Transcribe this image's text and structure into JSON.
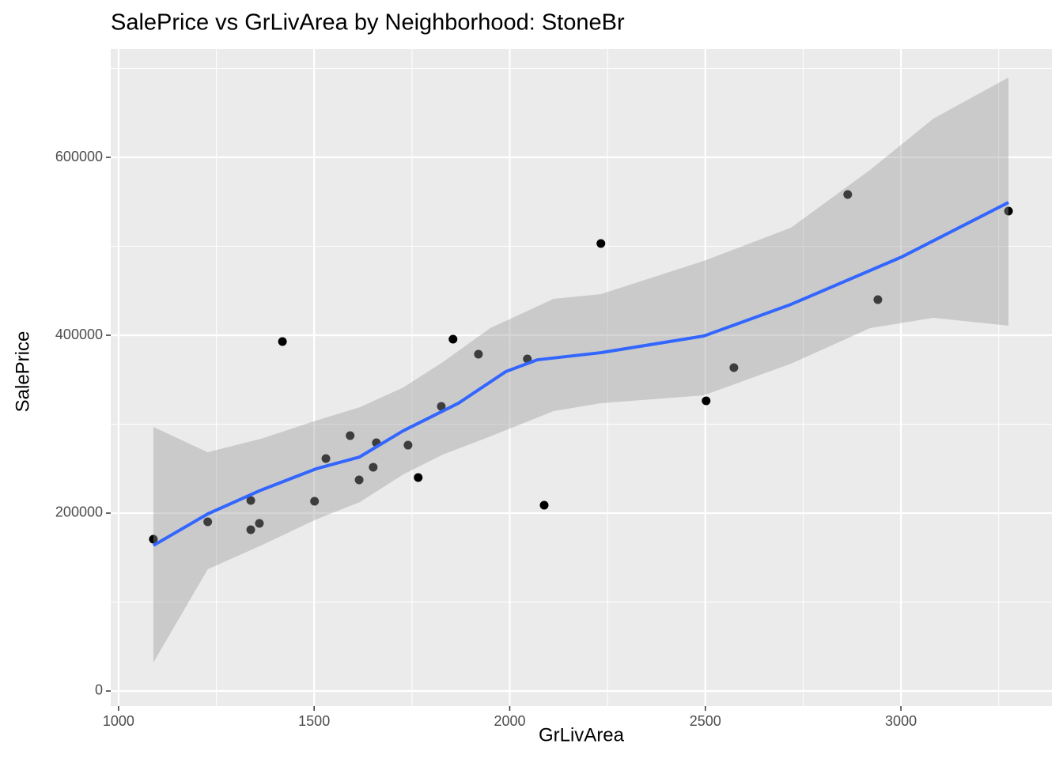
{
  "chart_data": {
    "type": "scatter",
    "title": "SalePrice vs GrLivArea by Neighborhood: StoneBr",
    "x_label": "GrLivArea",
    "y_label": "SalePrice",
    "xlim": [
      980,
      3386
    ],
    "ylim": [
      -16900,
      721800
    ],
    "xticks": [
      1000,
      1500,
      2000,
      2500,
      3000
    ],
    "yticks": [
      0,
      200000,
      400000,
      600000
    ],
    "xminor": [
      1250,
      1750,
      2250,
      2750,
      3250
    ],
    "yminor": [
      100000,
      300000,
      500000,
      700000
    ],
    "grid": true,
    "points": {
      "color": "#000000",
      "x": [
        1089,
        1228,
        1338,
        1338,
        1360,
        1419,
        1501,
        1530,
        1592,
        1615,
        1651,
        1659,
        1740,
        1766,
        1825,
        1855,
        1920,
        2045,
        2088,
        2233,
        2502,
        2573,
        2864,
        2941,
        3275
      ],
      "values": [
        170700,
        190200,
        214200,
        181300,
        188400,
        392900,
        213300,
        261300,
        287100,
        237300,
        251600,
        279100,
        276400,
        240000,
        320000,
        395600,
        378700,
        373300,
        208900,
        503100,
        326200,
        363600,
        558200,
        440000,
        539600
      ]
    },
    "smooth": {
      "color": "#3366ff",
      "x": [
        1089,
        1228,
        1364,
        1505,
        1616,
        1727,
        1869,
        1990,
        2071,
        2233,
        2496,
        2719,
        3002,
        3275
      ],
      "values": [
        163600,
        199100,
        225800,
        249800,
        263100,
        292400,
        323600,
        359100,
        372400,
        380400,
        399100,
        434700,
        488000,
        549300
      ]
    },
    "band": {
      "color": "#999999",
      "x": [
        1089,
        1228,
        1364,
        1505,
        1617,
        1728,
        1829,
        1950,
        2112,
        2233,
        2496,
        2719,
        2921,
        3083,
        3275
      ],
      "upper": [
        296900,
        268400,
        283600,
        304000,
        319100,
        341300,
        369800,
        408000,
        440900,
        446200,
        483600,
        520900,
        585800,
        643600,
        689800
      ],
      "lower": [
        32000,
        136900,
        163600,
        192900,
        212400,
        243600,
        265800,
        286200,
        314700,
        323600,
        332400,
        368000,
        408000,
        419600,
        410700
      ]
    }
  }
}
